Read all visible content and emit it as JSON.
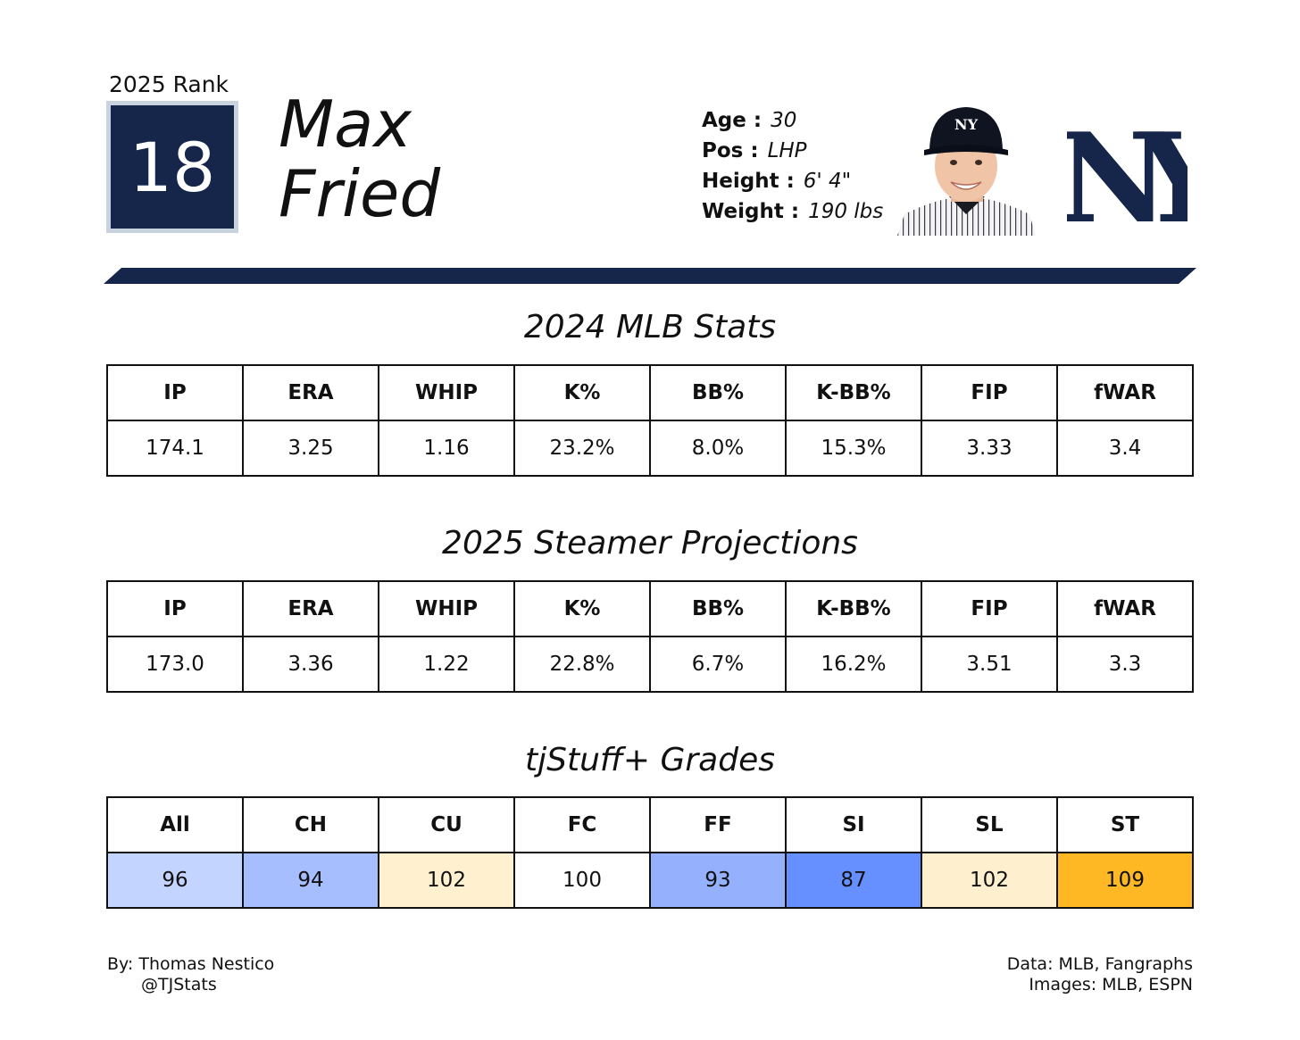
{
  "rank": {
    "label": "2025 Rank",
    "value": "18"
  },
  "player": {
    "first_name": "Max",
    "last_name": "Fried"
  },
  "bio": [
    {
      "key": "Age :",
      "value": "30"
    },
    {
      "key": "Pos :",
      "value": "LHP"
    },
    {
      "key": "Height :",
      "value": "6' 4\""
    },
    {
      "key": "Weight :",
      "value": "190 lbs"
    }
  ],
  "colors": {
    "navy": "#16254a",
    "rank_border": "#c9d3df"
  },
  "sections": {
    "mlb_stats": {
      "title": "2024 MLB Stats",
      "headers": [
        "IP",
        "ERA",
        "WHIP",
        "K%",
        "BB%",
        "K-BB%",
        "FIP",
        "fWAR"
      ],
      "values": [
        "174.1",
        "3.25",
        "1.16",
        "23.2%",
        "8.0%",
        "15.3%",
        "3.33",
        "3.4"
      ]
    },
    "projections": {
      "title": "2025 Steamer Projections",
      "headers": [
        "IP",
        "ERA",
        "WHIP",
        "K%",
        "BB%",
        "K-BB%",
        "FIP",
        "fWAR"
      ],
      "values": [
        "173.0",
        "3.36",
        "1.22",
        "22.8%",
        "6.7%",
        "16.2%",
        "3.51",
        "3.3"
      ]
    },
    "grades": {
      "title": "tjStuff+ Grades",
      "headers": [
        "All",
        "CH",
        "CU",
        "FC",
        "FF",
        "SI",
        "SL",
        "ST"
      ],
      "values": [
        "96",
        "94",
        "102",
        "100",
        "93",
        "87",
        "102",
        "109"
      ],
      "cell_colors": [
        "#c3d4fe",
        "#a6bdfe",
        "#fff0d0",
        "#ffffff",
        "#95b1fe",
        "#6690ff",
        "#feefcf",
        "#fdb824"
      ]
    }
  },
  "footer": {
    "author": "By: Thomas Nestico",
    "handle": "@TJStats",
    "data_source": "Data: MLB, Fangraphs",
    "image_source": "Images: MLB, ESPN"
  }
}
